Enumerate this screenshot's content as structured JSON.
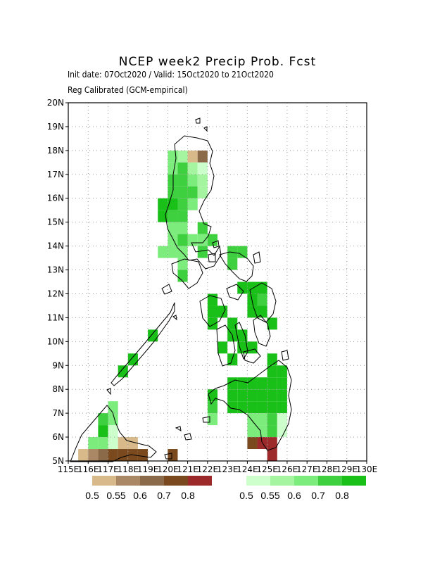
{
  "title": "NCEP week2 Precip Prob. Fcst",
  "subtitle_dates": "Init date: 07Oct2020 / Valid: 15Oct2020 to 21Oct2020",
  "subtitle_method": "Reg Calibrated (GCM-empirical)",
  "axes": {
    "lon_ticks": [
      "115E",
      "116E",
      "117E",
      "118E",
      "119E",
      "120E",
      "121E",
      "122E",
      "123E",
      "124E",
      "125E",
      "126E",
      "127E",
      "128E",
      "129E",
      "130E"
    ],
    "lat_ticks": [
      "5N",
      "6N",
      "7N",
      "8N",
      "9N",
      "10N",
      "11N",
      "12N",
      "13N",
      "14N",
      "15N",
      "16N",
      "17N",
      "18N",
      "19N",
      "20N"
    ],
    "lon_range": [
      115,
      130
    ],
    "lat_range": [
      5,
      20
    ],
    "grid": "dotted"
  },
  "colorbars": {
    "below": {
      "colors": [
        "#d8b98a",
        "#aa8865",
        "#8a6a48",
        "#7a4a1e",
        "#9c2a2a"
      ],
      "labels": [
        "0.5",
        "0.55",
        "0.6",
        "0.7",
        "0.8"
      ]
    },
    "above": {
      "colors": [
        "#ccffcc",
        "#a4f4a0",
        "#7cec7c",
        "#3ed03e",
        "#18c018"
      ],
      "labels": [
        "0.5",
        "0.55",
        "0.6",
        "0.7",
        "0.8"
      ]
    }
  },
  "chart_data": {
    "type": "heatmap",
    "title": "NCEP week2 Precip Prob. Fcst",
    "cell_size_deg": 0.5,
    "categories": [
      "above-0.5",
      "above-0.55",
      "above-0.6",
      "above-0.7",
      "above-0.8",
      "below-0.5",
      "below-0.55",
      "below-0.6",
      "below-0.7",
      "below-0.8"
    ],
    "cells": [
      {
        "lat": 17.75,
        "lon": 120.25,
        "cat": "above-0.6"
      },
      {
        "lat": 17.75,
        "lon": 120.75,
        "cat": "above-0.55"
      },
      {
        "lat": 17.75,
        "lon": 121.25,
        "cat": "below-0.5"
      },
      {
        "lat": 17.75,
        "lon": 121.75,
        "cat": "below-0.6"
      },
      {
        "lat": 17.25,
        "lon": 120.25,
        "cat": "above-0.6"
      },
      {
        "lat": 17.25,
        "lon": 120.75,
        "cat": "above-0.7"
      },
      {
        "lat": 17.25,
        "lon": 121.25,
        "cat": "above-0.55"
      },
      {
        "lat": 17.25,
        "lon": 121.75,
        "cat": "above-0.5"
      },
      {
        "lat": 16.75,
        "lon": 120.25,
        "cat": "above-0.7"
      },
      {
        "lat": 16.75,
        "lon": 120.75,
        "cat": "above-0.7"
      },
      {
        "lat": 16.75,
        "lon": 121.25,
        "cat": "above-0.6"
      },
      {
        "lat": 16.75,
        "lon": 121.75,
        "cat": "above-0.55"
      },
      {
        "lat": 16.25,
        "lon": 120.25,
        "cat": "above-0.7"
      },
      {
        "lat": 16.25,
        "lon": 120.75,
        "cat": "above-0.7"
      },
      {
        "lat": 16.25,
        "lon": 121.25,
        "cat": "above-0.7"
      },
      {
        "lat": 16.25,
        "lon": 121.75,
        "cat": "above-0.55"
      },
      {
        "lat": 15.75,
        "lon": 119.75,
        "cat": "above-0.8"
      },
      {
        "lat": 15.75,
        "lon": 120.25,
        "cat": "above-0.8"
      },
      {
        "lat": 15.75,
        "lon": 120.75,
        "cat": "above-0.7"
      },
      {
        "lat": 15.75,
        "lon": 121.25,
        "cat": "above-0.6"
      },
      {
        "lat": 15.25,
        "lon": 119.75,
        "cat": "above-0.8"
      },
      {
        "lat": 15.25,
        "lon": 120.25,
        "cat": "above-0.7"
      },
      {
        "lat": 15.25,
        "lon": 120.75,
        "cat": "above-0.7"
      },
      {
        "lat": 14.75,
        "lon": 120.25,
        "cat": "above-0.6"
      },
      {
        "lat": 14.75,
        "lon": 120.75,
        "cat": "above-0.6"
      },
      {
        "lat": 14.75,
        "lon": 121.75,
        "cat": "above-0.7"
      },
      {
        "lat": 14.25,
        "lon": 120.25,
        "cat": "above-0.6"
      },
      {
        "lat": 14.25,
        "lon": 120.75,
        "cat": "above-0.7"
      },
      {
        "lat": 14.25,
        "lon": 121.25,
        "cat": "above-0.6"
      },
      {
        "lat": 14.25,
        "lon": 121.75,
        "cat": "above-0.6"
      },
      {
        "lat": 14.25,
        "lon": 122.25,
        "cat": "above-0.7"
      },
      {
        "lat": 13.75,
        "lon": 119.75,
        "cat": "above-0.6"
      },
      {
        "lat": 13.75,
        "lon": 120.25,
        "cat": "above-0.6"
      },
      {
        "lat": 13.75,
        "lon": 120.75,
        "cat": "above-0.6"
      },
      {
        "lat": 13.75,
        "lon": 121.75,
        "cat": "above-0.7"
      },
      {
        "lat": 13.75,
        "lon": 123.25,
        "cat": "above-0.7"
      },
      {
        "lat": 13.75,
        "lon": 123.75,
        "cat": "above-0.7"
      },
      {
        "lat": 13.25,
        "lon": 120.75,
        "cat": "above-0.6"
      },
      {
        "lat": 13.25,
        "lon": 123.25,
        "cat": "above-0.7"
      },
      {
        "lat": 12.75,
        "lon": 120.75,
        "cat": "above-0.7"
      },
      {
        "lat": 12.25,
        "lon": 123.75,
        "cat": "above-0.8"
      },
      {
        "lat": 12.25,
        "lon": 124.25,
        "cat": "above-0.8"
      },
      {
        "lat": 12.25,
        "lon": 124.75,
        "cat": "above-0.8"
      },
      {
        "lat": 11.75,
        "lon": 122.25,
        "cat": "above-0.8"
      },
      {
        "lat": 11.75,
        "lon": 124.25,
        "cat": "above-0.8"
      },
      {
        "lat": 11.75,
        "lon": 124.75,
        "cat": "above-0.7"
      },
      {
        "lat": 11.25,
        "lon": 122.25,
        "cat": "above-0.8"
      },
      {
        "lat": 11.25,
        "lon": 122.75,
        "cat": "above-0.8"
      },
      {
        "lat": 11.25,
        "lon": 124.25,
        "cat": "above-0.8"
      },
      {
        "lat": 11.25,
        "lon": 124.75,
        "cat": "above-0.8"
      },
      {
        "lat": 10.75,
        "lon": 122.25,
        "cat": "above-0.8"
      },
      {
        "lat": 10.75,
        "lon": 123.25,
        "cat": "above-0.8"
      },
      {
        "lat": 10.75,
        "lon": 125.25,
        "cat": "above-0.8"
      },
      {
        "lat": 10.25,
        "lon": 119.25,
        "cat": "above-0.8"
      },
      {
        "lat": 10.25,
        "lon": 123.25,
        "cat": "above-0.8"
      },
      {
        "lat": 10.25,
        "lon": 123.75,
        "cat": "above-0.8"
      },
      {
        "lat": 9.75,
        "lon": 122.75,
        "cat": "above-0.8"
      },
      {
        "lat": 9.75,
        "lon": 123.75,
        "cat": "above-0.8"
      },
      {
        "lat": 9.75,
        "lon": 124.25,
        "cat": "above-0.8"
      },
      {
        "lat": 9.25,
        "lon": 118.25,
        "cat": "above-0.8"
      },
      {
        "lat": 9.25,
        "lon": 123.25,
        "cat": "above-0.8"
      },
      {
        "lat": 9.25,
        "lon": 125.25,
        "cat": "above-0.8"
      },
      {
        "lat": 8.75,
        "lon": 117.75,
        "cat": "above-0.8"
      },
      {
        "lat": 8.75,
        "lon": 125.25,
        "cat": "above-0.8"
      },
      {
        "lat": 8.75,
        "lon": 125.75,
        "cat": "above-0.8"
      },
      {
        "lat": 8.25,
        "lon": 123.25,
        "cat": "above-0.8"
      },
      {
        "lat": 8.25,
        "lon": 123.75,
        "cat": "above-0.8"
      },
      {
        "lat": 8.25,
        "lon": 124.25,
        "cat": "above-0.8"
      },
      {
        "lat": 8.25,
        "lon": 124.75,
        "cat": "above-0.8"
      },
      {
        "lat": 8.25,
        "lon": 125.25,
        "cat": "above-0.8"
      },
      {
        "lat": 8.25,
        "lon": 125.75,
        "cat": "above-0.8"
      },
      {
        "lat": 7.75,
        "lon": 122.25,
        "cat": "above-0.8"
      },
      {
        "lat": 7.75,
        "lon": 123.25,
        "cat": "above-0.8"
      },
      {
        "lat": 7.75,
        "lon": 123.75,
        "cat": "above-0.8"
      },
      {
        "lat": 7.75,
        "lon": 124.25,
        "cat": "above-0.8"
      },
      {
        "lat": 7.75,
        "lon": 124.75,
        "cat": "above-0.8"
      },
      {
        "lat": 7.75,
        "lon": 125.25,
        "cat": "above-0.8"
      },
      {
        "lat": 7.75,
        "lon": 125.75,
        "cat": "above-0.8"
      },
      {
        "lat": 7.25,
        "lon": 117.25,
        "cat": "above-0.6"
      },
      {
        "lat": 7.25,
        "lon": 122.25,
        "cat": "above-0.7"
      },
      {
        "lat": 7.25,
        "lon": 123.25,
        "cat": "above-0.8"
      },
      {
        "lat": 7.25,
        "lon": 123.75,
        "cat": "above-0.8"
      },
      {
        "lat": 7.25,
        "lon": 124.25,
        "cat": "above-0.8"
      },
      {
        "lat": 7.25,
        "lon": 124.75,
        "cat": "above-0.8"
      },
      {
        "lat": 7.25,
        "lon": 125.25,
        "cat": "above-0.8"
      },
      {
        "lat": 7.25,
        "lon": 125.75,
        "cat": "above-0.8"
      },
      {
        "lat": 6.75,
        "lon": 116.75,
        "cat": "above-0.7"
      },
      {
        "lat": 6.75,
        "lon": 117.25,
        "cat": "above-0.6"
      },
      {
        "lat": 6.75,
        "lon": 122.25,
        "cat": "above-0.6"
      },
      {
        "lat": 6.75,
        "lon": 124.25,
        "cat": "above-0.6"
      },
      {
        "lat": 6.75,
        "lon": 124.75,
        "cat": "above-0.6"
      },
      {
        "lat": 6.75,
        "lon": 125.25,
        "cat": "above-0.7"
      },
      {
        "lat": 6.75,
        "lon": 125.75,
        "cat": "above-0.5"
      },
      {
        "lat": 6.25,
        "lon": 116.75,
        "cat": "above-0.8"
      },
      {
        "lat": 6.25,
        "lon": 117.25,
        "cat": "above-0.5"
      },
      {
        "lat": 6.25,
        "lon": 124.25,
        "cat": "above-0.6"
      },
      {
        "lat": 6.25,
        "lon": 124.75,
        "cat": "above-0.6"
      },
      {
        "lat": 6.25,
        "lon": 125.25,
        "cat": "above-0.7"
      },
      {
        "lat": 6.25,
        "lon": 125.75,
        "cat": "above-0.5"
      },
      {
        "lat": 5.75,
        "lon": 116.25,
        "cat": "above-0.6"
      },
      {
        "lat": 5.75,
        "lon": 116.75,
        "cat": "above-0.6"
      },
      {
        "lat": 5.75,
        "lon": 117.25,
        "cat": "above-0.5"
      },
      {
        "lat": 5.75,
        "lon": 117.75,
        "cat": "below-0.5"
      },
      {
        "lat": 5.75,
        "lon": 118.25,
        "cat": "below-0.5"
      },
      {
        "lat": 5.75,
        "lon": 124.25,
        "cat": "below-0.7"
      },
      {
        "lat": 5.75,
        "lon": 124.75,
        "cat": "below-0.8"
      },
      {
        "lat": 5.75,
        "lon": 125.25,
        "cat": "below-0.8"
      },
      {
        "lat": 5.25,
        "lon": 115.75,
        "cat": "below-0.5"
      },
      {
        "lat": 5.25,
        "lon": 116.25,
        "cat": "below-0.55"
      },
      {
        "lat": 5.25,
        "lon": 116.75,
        "cat": "below-0.6"
      },
      {
        "lat": 5.25,
        "lon": 117.25,
        "cat": "below-0.7"
      },
      {
        "lat": 5.25,
        "lon": 117.75,
        "cat": "below-0.7"
      },
      {
        "lat": 5.25,
        "lon": 118.25,
        "cat": "below-0.7"
      },
      {
        "lat": 5.25,
        "lon": 118.75,
        "cat": "below-0.7"
      },
      {
        "lat": 5.25,
        "lon": 120.25,
        "cat": "below-0.7"
      },
      {
        "lat": 5.25,
        "lon": 125.25,
        "cat": "below-0.8"
      }
    ]
  }
}
